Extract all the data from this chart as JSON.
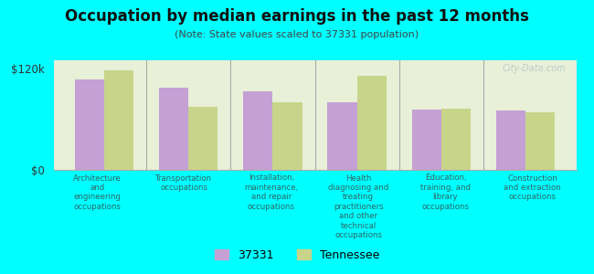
{
  "title": "Occupation by median earnings in the past 12 months",
  "subtitle": "(Note: State values scaled to 37331 population)",
  "categories": [
    "Architecture\nand\nengineering\noccupations",
    "Transportation\noccupations",
    "Installation,\nmaintenance,\nand repair\noccupations",
    "Health\ndiagnosing and\ntreating\npractitioners\nand other\ntechnical\noccupations",
    "Education,\ntraining, and\nlibrary\noccupations",
    "Construction\nand extraction\noccupations"
  ],
  "values_37331": [
    107000,
    98000,
    93000,
    80000,
    72000,
    70000
  ],
  "values_tennessee": [
    118000,
    75000,
    80000,
    112000,
    73000,
    68000
  ],
  "color_37331": "#c4a0d4",
  "color_tennessee": "#c8d48a",
  "ylim": [
    0,
    130000
  ],
  "ytick_labels": [
    "$0",
    "$120k"
  ],
  "ytick_vals": [
    0,
    120000
  ],
  "background_color": "#e8f0d8",
  "outer_background": "#00ffff",
  "legend_label_37331": "37331",
  "legend_label_tennessee": "Tennessee",
  "watermark": "City-Data.com"
}
